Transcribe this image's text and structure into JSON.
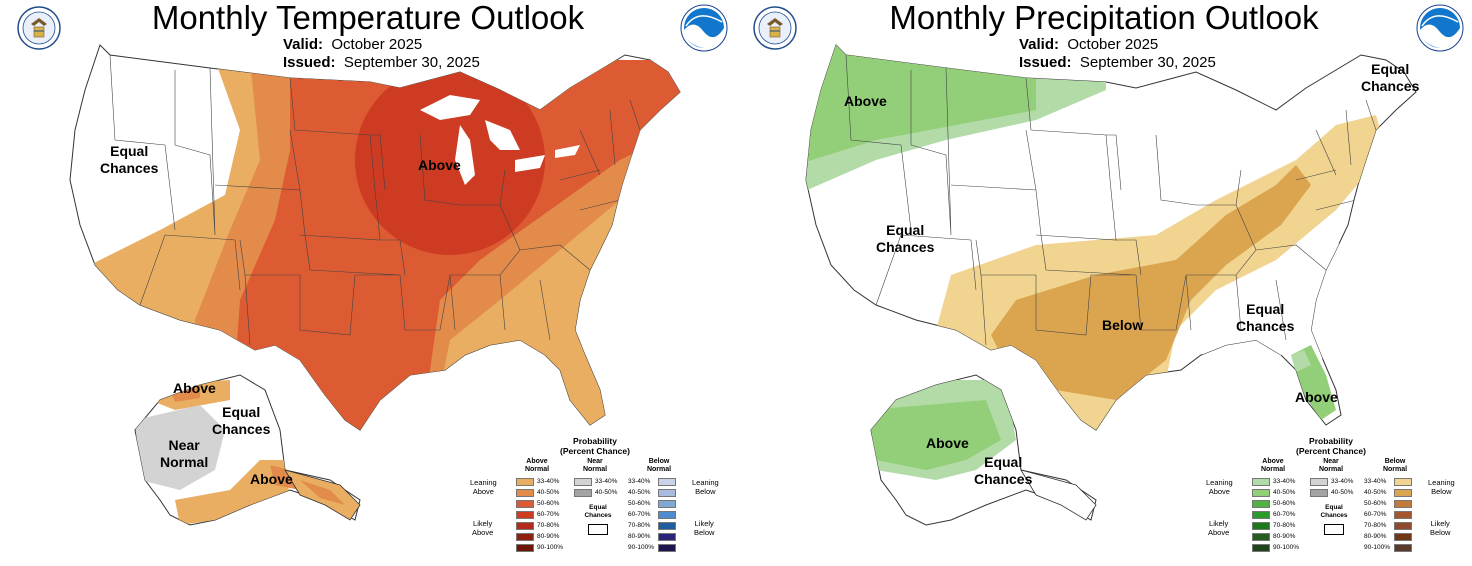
{
  "temperature": {
    "title": "Monthly Temperature Outlook",
    "valid_label": "Valid:",
    "valid_value": "October 2025",
    "issued_label": "Issued:",
    "issued_value": "September 30, 2025",
    "labels": {
      "above_main": "Above",
      "equal_chances_west": "Equal\nChances",
      "above_ak_north": "Above",
      "equal_chances_ak": "Equal\nChances",
      "near_normal_ak": "Near\nNormal",
      "above_ak_south": "Above"
    }
  },
  "precipitation": {
    "title": "Monthly Precipitation Outlook",
    "valid_label": "Valid:",
    "valid_value": "October 2025",
    "issued_label": "Issued:",
    "issued_value": "September 30, 2025",
    "labels": {
      "above_nw": "Above",
      "equal_chances_ne": "Equal\nChances",
      "equal_chances_west": "Equal\nChances",
      "below_south": "Below",
      "equal_chances_se": "Equal\nChances",
      "above_fl": "Above",
      "above_ak": "Above",
      "equal_chances_ak": "Equal\nChances"
    }
  },
  "legend": {
    "title": "Probability\n(Percent Chance)",
    "temp_above_head": "Above\nNormal",
    "temp_near_head": "Near\nNormal",
    "temp_below_head": "Below\nNormal",
    "prcp_above_head": "Above\nNormal",
    "prcp_near_head": "Near\nNormal",
    "prcp_below_head": "Below\nNormal",
    "ranges": [
      "33-40%",
      "40-50%",
      "50-60%",
      "60-70%",
      "70-80%",
      "80-90%",
      "90-100%"
    ],
    "near_ranges": [
      "33-40%",
      "40-50%"
    ],
    "leaning_above": "Leaning\nAbove",
    "likely_above": "Likely\nAbove",
    "leaning_below": "Leaning\nBelow",
    "likely_below": "Likely\nBelow",
    "equal_chances": "Equal\nChances"
  },
  "colors": {
    "temp_above": [
      "#e9ae62",
      "#e38b4b",
      "#dc5b33",
      "#cc3b22",
      "#b32a1a",
      "#8e200f",
      "#6b1708"
    ],
    "temp_below": [
      "#c8d3ea",
      "#a8bcdf",
      "#82a7d6",
      "#4f8bd0",
      "#1f5c9f",
      "#2a2578",
      "#1d1450"
    ],
    "near": [
      "#d3d3d3",
      "#a3a3a3"
    ],
    "prcp_above": [
      "#b2dba8",
      "#92cf78",
      "#51b33f",
      "#2c9a2c",
      "#1a7a1a",
      "#265c22",
      "#1f4419"
    ],
    "prcp_below": [
      "#f0d48f",
      "#dba550",
      "#c17a3c",
      "#a3572d",
      "#8d4a2d",
      "#6e3616",
      "#5a3a2c"
    ]
  },
  "icons": [
    "commerce-seal-icon",
    "noaa-logo-icon"
  ]
}
